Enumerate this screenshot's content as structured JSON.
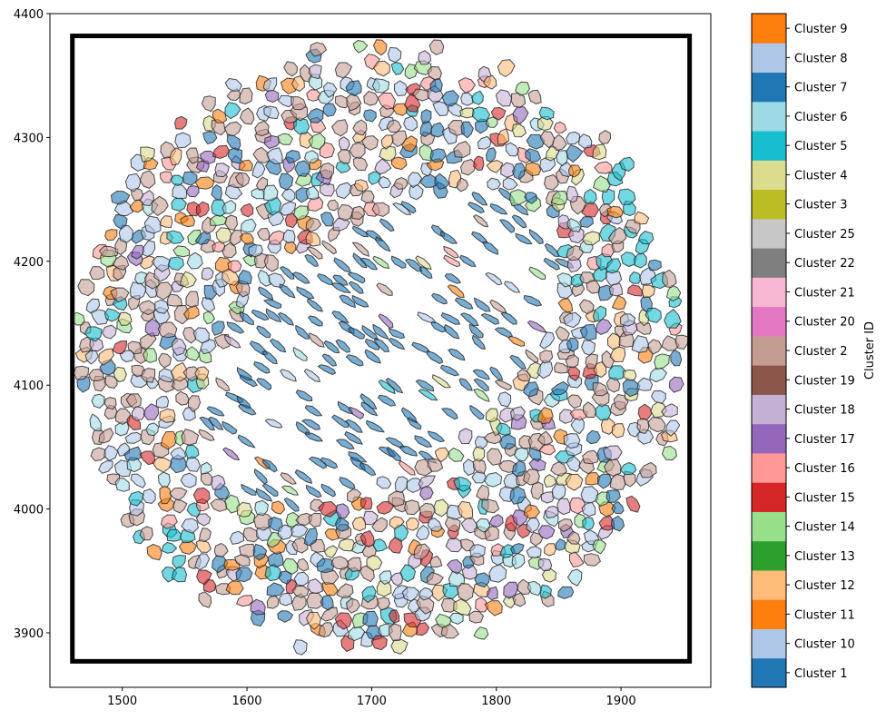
{
  "chart_data": {
    "type": "scatter",
    "subtype": "segmentation-polygons",
    "title": "",
    "xlabel": "",
    "ylabel": "",
    "xlim": [
      1442,
      1972
    ],
    "ylim": [
      3856,
      4400
    ],
    "xticks": [
      1500,
      1600,
      1700,
      1800,
      1900
    ],
    "yticks": [
      3900,
      4000,
      4100,
      4200,
      4300,
      4400
    ],
    "grid": false,
    "region_box": {
      "x": [
        1460,
        1955
      ],
      "y": [
        3877,
        4382
      ],
      "color": "#000000"
    },
    "tissue_center": [
      1707,
      4130
    ],
    "tissue_radius": 250,
    "cell_alpha": 0.6,
    "cell_edge_color": "#222222",
    "colorbar": {
      "label": "Cluster ID",
      "placement": "right",
      "categories": [
        "Cluster 1",
        "Cluster 10",
        "Cluster 11",
        "Cluster 12",
        "Cluster 13",
        "Cluster 14",
        "Cluster 15",
        "Cluster 16",
        "Cluster 17",
        "Cluster 18",
        "Cluster 19",
        "Cluster 2",
        "Cluster 20",
        "Cluster 21",
        "Cluster 22",
        "Cluster 25",
        "Cluster 3",
        "Cluster 4",
        "Cluster 5",
        "Cluster 6",
        "Cluster 7",
        "Cluster 8",
        "Cluster 9"
      ],
      "colors": [
        "#1f77b4",
        "#aec7e8",
        "#ff7f0e",
        "#ffbb78",
        "#2ca02c",
        "#98df8a",
        "#d62728",
        "#ff9896",
        "#9467bd",
        "#c5b0d5",
        "#8c564b",
        "#c49c94",
        "#e377c2",
        "#f7b6d2",
        "#7f7f7f",
        "#c7c7c7",
        "#bcbd22",
        "#dbdb8d",
        "#17becf",
        "#9edae5",
        "#1f77b4",
        "#aec7e8",
        "#ff7f0e"
      ]
    }
  }
}
